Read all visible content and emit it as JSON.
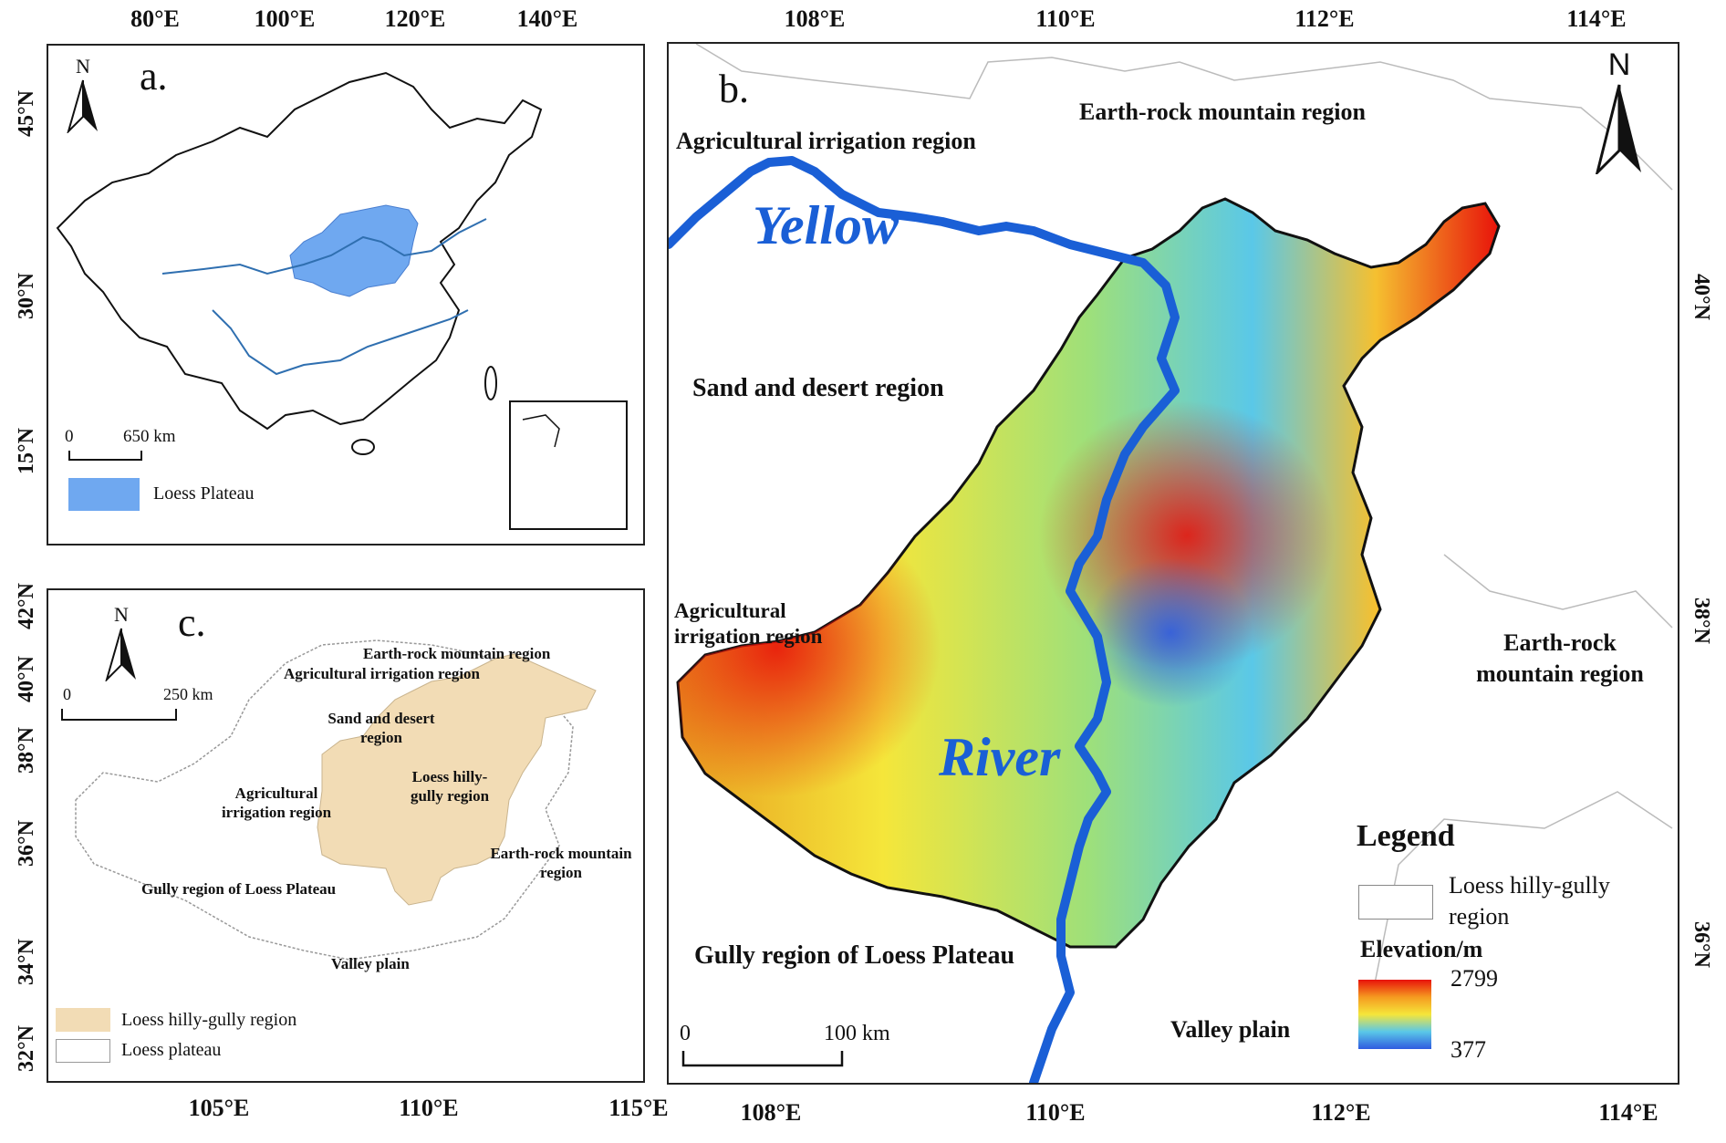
{
  "panel_a": {
    "letter": "a.",
    "north": "N",
    "lon_ticks": [
      "80°E",
      "100°E",
      "120°E",
      "140°E"
    ],
    "lat_ticks": [
      "45°N",
      "30°N",
      "15°N"
    ],
    "scale": {
      "zero": "0",
      "label": "650 km"
    },
    "legend": {
      "label": "Loess Plateau",
      "color": "#6fa8f0"
    }
  },
  "panel_c": {
    "letter": "c.",
    "north": "N",
    "lon_ticks": [
      "105°E",
      "110°E",
      "115°E"
    ],
    "lat_ticks": [
      "42°N",
      "40°N",
      "38°N",
      "36°N",
      "34°N",
      "32°N"
    ],
    "scale": {
      "zero": "0",
      "label": "250 km"
    },
    "regions": [
      "Earth-rock mountain region",
      "Agricultural irrigation region",
      "Sand and desert region",
      "Loess hilly-gully region",
      "Agricultural irrigation region",
      "Earth-rock mountain region",
      "Gully region of Loess Plateau",
      "Valley plain"
    ],
    "legend": [
      {
        "label": "Loess hilly-gully region",
        "color": "#f2dcb5"
      },
      {
        "label": "Loess plateau",
        "color": "#ffffff"
      }
    ]
  },
  "panel_b": {
    "letter": "b.",
    "north": "N",
    "lon_ticks_top": [
      "108°E",
      "110°E",
      "112°E",
      "114°E"
    ],
    "lon_ticks_bottom": [
      "108°E",
      "110°E",
      "112°E",
      "114°E"
    ],
    "lat_ticks": [
      "40°N",
      "38°N",
      "36°N"
    ],
    "regions": {
      "earth_rock_top": "Earth-rock mountain region",
      "agri_top": "Agricultural irrigation region",
      "sand_desert": "Sand and desert region",
      "agri_left": "Agricultural irrigation region",
      "earth_rock_right": "Earth-rock mountain region",
      "gully": "Gully region of Loess Plateau",
      "valley": "Valley plain"
    },
    "river_words": [
      "Yellow",
      "River"
    ],
    "scale": {
      "zero": "0",
      "label": "100 km"
    },
    "legend": {
      "title": "Legend",
      "boundary_label": "Loess hilly-gully region",
      "elevation_title": "Elevation/m",
      "elev_max": "2799",
      "elev_min": "377"
    },
    "colors": {
      "river": "#1a5fd6",
      "high": "#e8120a",
      "mid": "#f5e63a",
      "low": "#2f5be0"
    }
  }
}
